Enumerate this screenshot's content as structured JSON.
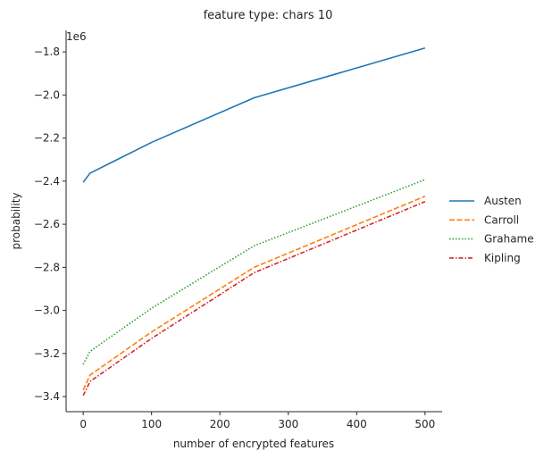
{
  "chart_data": {
    "type": "line",
    "title": "feature type: chars 10",
    "xlabel": "number of encrypted features",
    "ylabel": "probability",
    "offset_label": "1e6",
    "xlim": [
      -25,
      525
    ],
    "ylim": [
      -3.47,
      -1.7
    ],
    "x_ticks": [
      0,
      100,
      200,
      300,
      400,
      500
    ],
    "x_tick_labels": [
      "0",
      "100",
      "200",
      "300",
      "400",
      "500"
    ],
    "y_ticks": [
      -3.4,
      -3.2,
      -3.0,
      -2.8,
      -2.6,
      -2.4,
      -2.2,
      -2.0,
      -1.8
    ],
    "y_tick_labels": [
      "−3.4",
      "−3.2",
      "−3.0",
      "−2.8",
      "−2.6",
      "−2.4",
      "−2.2",
      "−2.0",
      "−1.8"
    ],
    "grid": false,
    "legend_position": "right",
    "x": [
      0,
      10,
      100,
      250,
      500
    ],
    "series": [
      {
        "name": "Austen",
        "color": "#1f77b4",
        "dash": "solid",
        "values": [
          -2.405,
          -2.363,
          -2.22,
          -2.013,
          -1.782
        ]
      },
      {
        "name": "Carroll",
        "color": "#ff7f0e",
        "dash": "dashed",
        "values": [
          -3.37,
          -3.3,
          -3.1,
          -2.8,
          -2.47
        ]
      },
      {
        "name": "Grahame",
        "color": "#2ca02c",
        "dash": "dotted",
        "values": [
          -3.25,
          -3.19,
          -2.99,
          -2.7,
          -2.393
        ]
      },
      {
        "name": "Kipling",
        "color": "#d62728",
        "dash": "dashdot",
        "values": [
          -3.395,
          -3.33,
          -3.13,
          -2.825,
          -2.495
        ]
      }
    ]
  }
}
